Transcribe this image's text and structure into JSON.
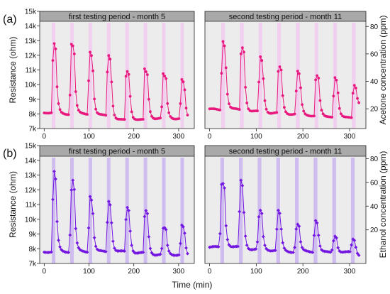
{
  "chart_data": [
    {
      "type": "scatter",
      "label": "(a)",
      "ylabel": "Resistance (ohm)",
      "ylabel_right": "Acetone concentration (ppm)",
      "y_ticks": [
        "7k",
        "8k",
        "9k",
        "10k",
        "11k",
        "12k",
        "13k",
        "14k",
        "15k"
      ],
      "ylim": [
        7000,
        15000
      ],
      "right_ticks": [
        "20",
        "40",
        "60",
        "80"
      ],
      "right_ylim": [
        5.6,
        91
      ],
      "color": "#e8197e",
      "pulse_color": "#f2cdf0",
      "periods": [
        {
          "title": "first testing period - month 5",
          "x_ticks": [
            "0",
            "100",
            "200",
            "300"
          ],
          "xlim": [
            -10,
            335
          ],
          "pulses": [
            [
              17,
              25
            ],
            [
              58,
              66
            ],
            [
              99,
              107
            ],
            [
              140,
              148
            ],
            [
              181,
              189
            ],
            [
              222,
              230
            ],
            [
              263,
              271
            ],
            [
              304,
              312
            ]
          ],
          "peaks": [
            [
              21,
              12950
            ],
            [
              61,
              12950
            ],
            [
              101,
              12350
            ],
            [
              142,
              12150
            ],
            [
              183,
              11050
            ],
            [
              224,
              11050
            ],
            [
              265,
              10750
            ],
            [
              307,
              10350
            ]
          ],
          "baselines": [
            8100,
            8000,
            8000,
            7900,
            7600,
            7600,
            7700,
            7700,
            7600
          ]
        },
        {
          "title": "second testing period - month 11",
          "x_ticks": [
            "0",
            "100",
            "200",
            "300"
          ],
          "xlim": [
            -10,
            335
          ],
          "pulses": [
            [
              25,
              33
            ],
            [
              65,
              73
            ],
            [
              105,
              113
            ],
            [
              145,
              153
            ],
            [
              185,
              193
            ],
            [
              225,
              233
            ],
            [
              265,
              273
            ],
            [
              305,
              313
            ]
          ],
          "peaks": [
            [
              28,
              13050
            ],
            [
              68,
              12750
            ],
            [
              108,
              11950
            ],
            [
              148,
              11350
            ],
            [
              188,
              10950
            ],
            [
              228,
              10750
            ],
            [
              268,
              10550
            ],
            [
              309,
              10050
            ]
          ],
          "baselines": [
            8300,
            8300,
            8150,
            8050,
            8000,
            7900,
            7800,
            7750,
            8600
          ]
        }
      ]
    },
    {
      "type": "scatter",
      "label": "(b)",
      "ylabel": "Resistance (ohm)",
      "ylabel_right": "Ethanol concentration (ppm)",
      "y_ticks": [
        "7k",
        "8k",
        "9k",
        "10k",
        "11k",
        "12k",
        "13k",
        "14k",
        "15k"
      ],
      "ylim": [
        7000,
        15000
      ],
      "right_ticks": [
        "20",
        "40",
        "60",
        "80"
      ],
      "right_ylim": [
        -8.3,
        91
      ],
      "color": "#7316e0",
      "pulse_color": "#ccb8ef",
      "periods": [
        {
          "title": "first testing period - month 5",
          "x_ticks": [
            "0",
            "100",
            "200",
            "300"
          ],
          "xlim": [
            -10,
            335
          ],
          "pulses": [
            [
              17,
              25
            ],
            [
              58,
              66
            ],
            [
              99,
              107
            ],
            [
              140,
              148
            ],
            [
              181,
              189
            ],
            [
              222,
              230
            ],
            [
              263,
              271
            ],
            [
              304,
              312
            ]
          ],
          "peaks": [
            [
              22,
              13300
            ],
            [
              62,
              12900
            ],
            [
              102,
              11600
            ],
            [
              143,
              11300
            ],
            [
              184,
              10900
            ],
            [
              225,
              10700
            ],
            [
              266,
              9500
            ],
            [
              307,
              9600
            ]
          ],
          "baselines": [
            7800,
            7800,
            7800,
            7800,
            7800,
            7700,
            7600,
            7600,
            7400
          ]
        },
        {
          "title": "second testing period - month 11",
          "x_ticks": [
            "0",
            "100",
            "200",
            "300"
          ],
          "xlim": [
            -10,
            335
          ],
          "pulses": [
            [
              23,
              31
            ],
            [
              63,
              71
            ],
            [
              103,
              111
            ],
            [
              143,
              151
            ],
            [
              183,
              191
            ],
            [
              223,
              231
            ],
            [
              263,
              271
            ],
            [
              303,
              311
            ]
          ],
          "peaks": [
            [
              26,
              12700
            ],
            [
              67,
              12650
            ],
            [
              107,
              10700
            ],
            [
              147,
              10600
            ],
            [
              187,
              9750
            ],
            [
              227,
              9950
            ],
            [
              268,
              8900
            ],
            [
              307,
              8650
            ]
          ],
          "baselines": [
            8100,
            8100,
            7950,
            7900,
            7800,
            7800,
            7750,
            7750,
            7500
          ]
        }
      ]
    }
  ],
  "xlabel": "Time (min)"
}
